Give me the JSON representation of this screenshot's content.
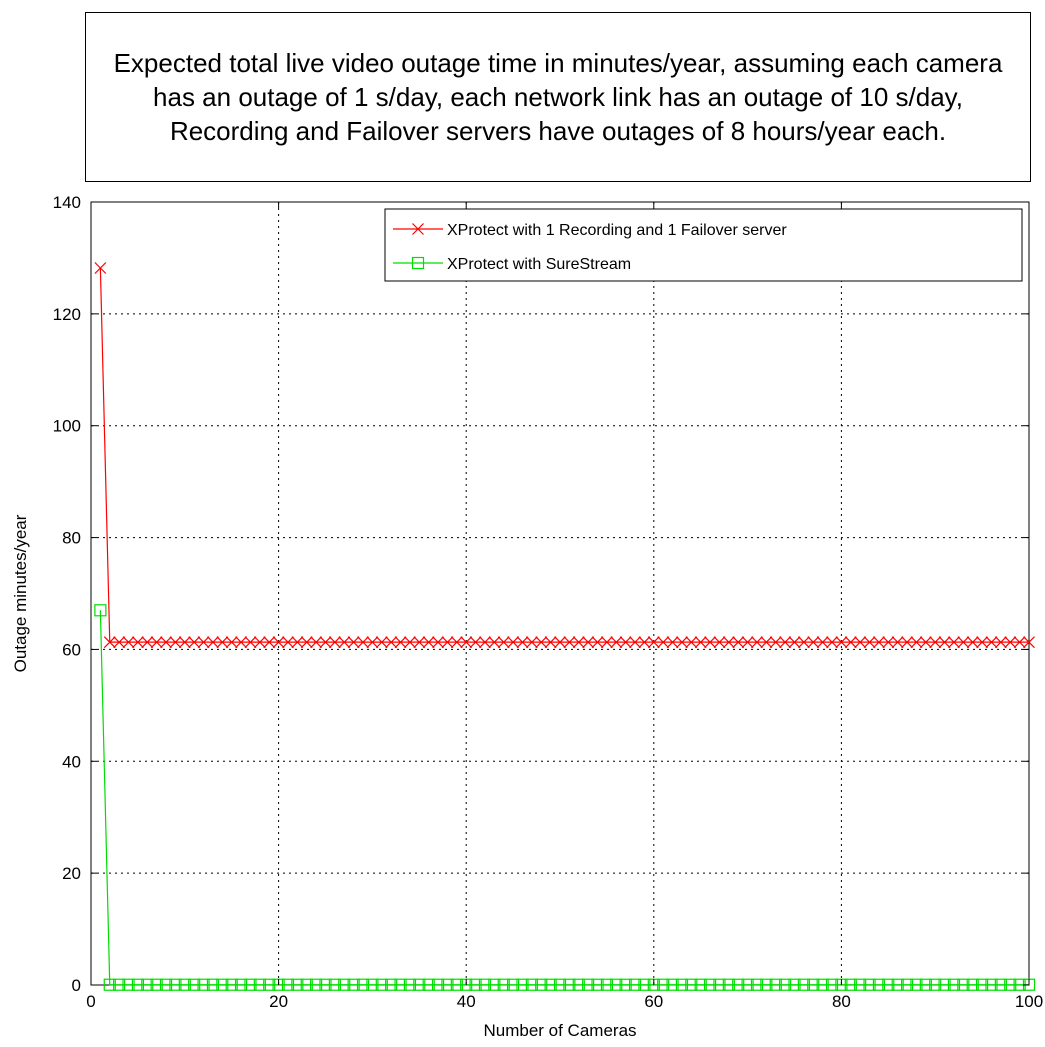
{
  "chart_data": {
    "type": "line",
    "title": "Expected total live video outage time in minutes/year, assuming each camera has an outage of 1 s/day, each network link has an outage of 10 s/day, Recording and Failover servers have outages of 8 hours/year each.",
    "xlabel": "Number of Cameras",
    "ylabel": "Outage minutes/year",
    "xlim": [
      0,
      100
    ],
    "ylim": [
      0,
      140
    ],
    "xticks": [
      0,
      20,
      40,
      60,
      80,
      100
    ],
    "yticks": [
      0,
      20,
      40,
      60,
      80,
      100,
      120,
      140
    ],
    "grid": true,
    "legend_position": "top-right",
    "series": [
      {
        "name": "XProtect with 1 Recording and 1 Failover server",
        "color": "#ff0000",
        "marker": "x",
        "first_values": [
          [
            1,
            128.2
          ],
          [
            2,
            61.3
          ]
        ],
        "plateau_value": 61.3,
        "x_range": [
          1,
          100
        ]
      },
      {
        "name": "XProtect with SureStream",
        "color": "#00dd00",
        "marker": "square",
        "first_values": [
          [
            1,
            67.0
          ],
          [
            2,
            0.05
          ]
        ],
        "plateau_value": 0.05,
        "x_range": [
          1,
          100
        ]
      }
    ]
  }
}
